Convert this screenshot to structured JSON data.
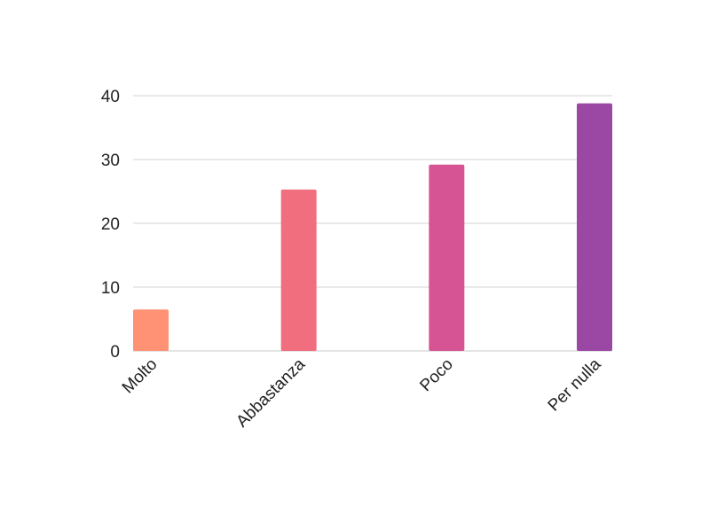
{
  "chart_data": {
    "type": "bar",
    "categories": [
      "Molto",
      "Abbastanza",
      "Poco",
      "Per nulla"
    ],
    "values": [
      6.5,
      25.3,
      29.2,
      38.8
    ],
    "colors": [
      "#ff9274",
      "#f06e7e",
      "#d65493",
      "#9b48a5"
    ],
    "ylim": [
      0,
      40
    ],
    "yticks": [
      "0",
      "10",
      "20",
      "30",
      "40"
    ],
    "ytick_values": [
      0,
      10,
      20,
      30,
      40
    ],
    "grid": true,
    "gridline_color": "#d3d3d3",
    "title": "",
    "xlabel": "",
    "ylabel": ""
  }
}
